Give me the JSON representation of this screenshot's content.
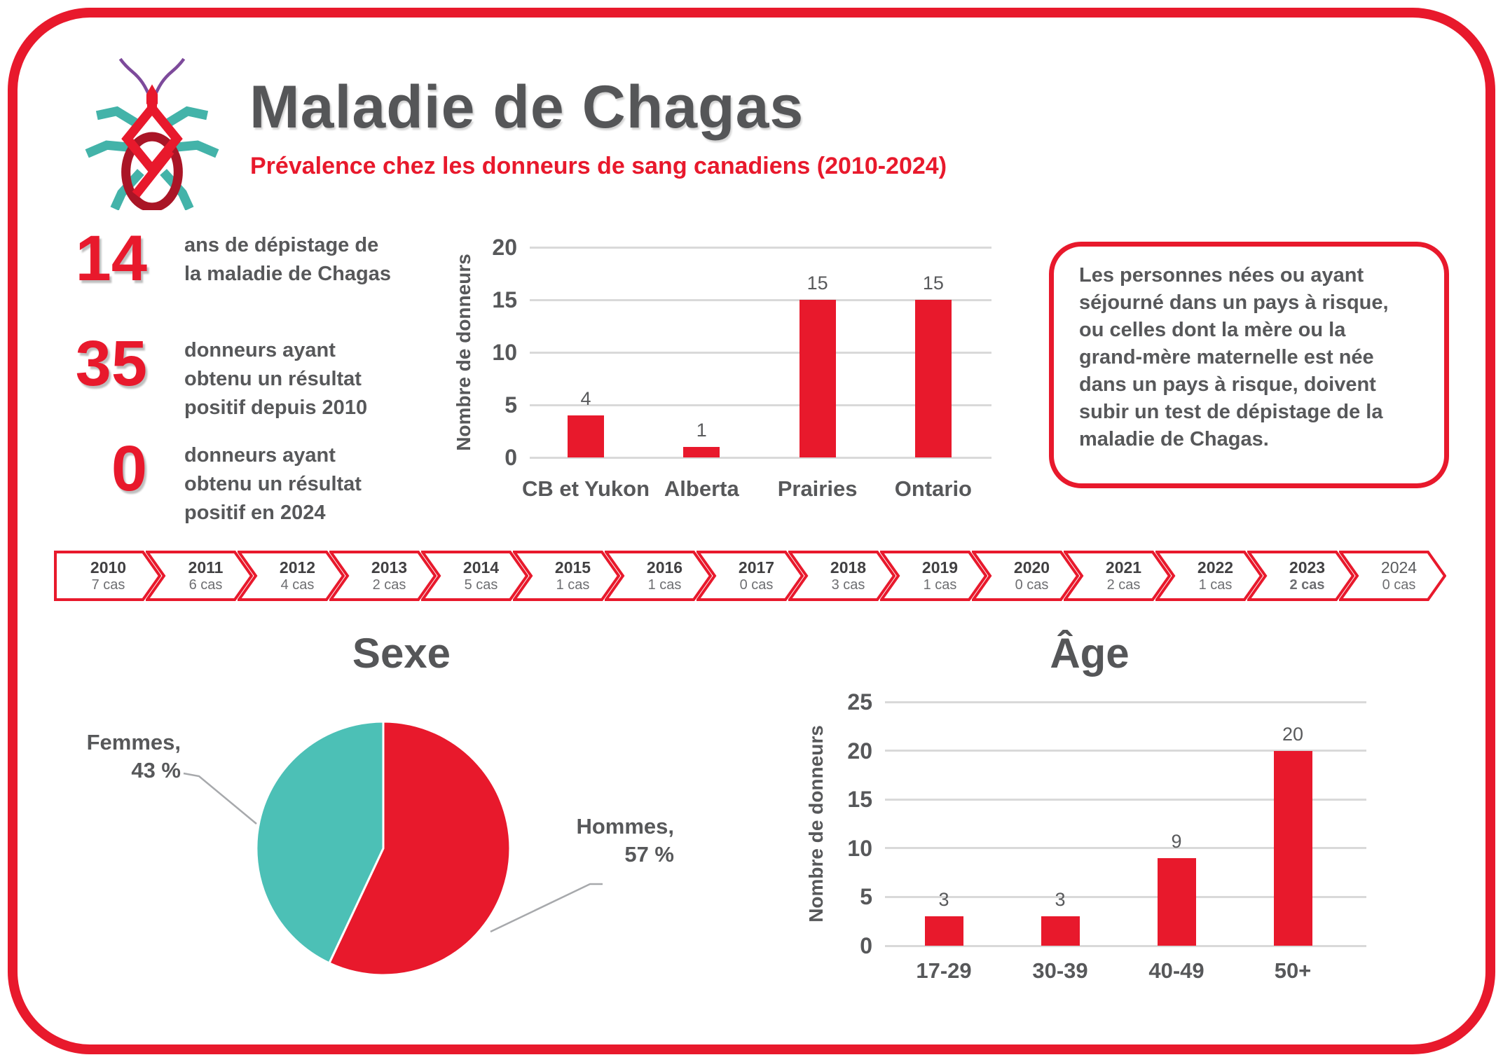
{
  "colors": {
    "red": "#e8192c",
    "teal": "#4cc0b6",
    "dark_red": "#aa1526",
    "gray_text": "#57585a",
    "gridline": "#d9d9d9"
  },
  "header": {
    "title": "Maladie de Chagas",
    "subtitle": "Prévalence chez les donneurs de sang canadiens (2010-2024)",
    "bug_icon": "kissing-bug-icon"
  },
  "stats": [
    {
      "value": "14",
      "label": "ans de dépistage de la maladie de Chagas"
    },
    {
      "value": "35",
      "label": "donneurs ayant obtenu un résultat positif depuis 2010"
    },
    {
      "value": "0",
      "label": "donneurs ayant obtenu un résultat positif en 2024"
    }
  ],
  "info_box": {
    "text": "Les personnes nées ou ayant séjourné dans un pays à risque, ou celles dont la mère ou la grand-mère maternelle est née dans un pays à risque, doivent subir un test de dépistage de la maladie de Chagas."
  },
  "timeline": {
    "items": [
      {
        "year": "2010",
        "cas": "7 cas"
      },
      {
        "year": "2011",
        "cas": "6 cas"
      },
      {
        "year": "2012",
        "cas": "4 cas"
      },
      {
        "year": "2013",
        "cas": "2 cas"
      },
      {
        "year": "2014",
        "cas": "5 cas"
      },
      {
        "year": "2015",
        "cas": "1 cas"
      },
      {
        "year": "2016",
        "cas": "1 cas"
      },
      {
        "year": "2017",
        "cas": "0 cas"
      },
      {
        "year": "2018",
        "cas": "3 cas"
      },
      {
        "year": "2019",
        "cas": "1 cas"
      },
      {
        "year": "2020",
        "cas": "0 cas"
      },
      {
        "year": "2021",
        "cas": "2 cas"
      },
      {
        "year": "2022",
        "cas": "1 cas"
      },
      {
        "year": "2023",
        "cas": "2 cas",
        "cas_bold": true
      },
      {
        "year": "2024",
        "cas": "0 cas",
        "year_light": true
      }
    ]
  },
  "sections": {
    "sexe_title": "Sexe",
    "age_title": "Âge"
  },
  "pie_labels": {
    "femmes_line1": "Femmes,",
    "femmes_line2": "43 %",
    "hommes_line1": "Hommes,",
    "hommes_line2": "57 %"
  },
  "chart_data": [
    {
      "id": "regions",
      "type": "bar",
      "title": "",
      "ylabel": "Nombre de donneurs",
      "categories": [
        "CB et Yukon",
        "Alberta",
        "Prairies",
        "Ontario"
      ],
      "values": [
        4,
        1,
        15,
        15
      ],
      "ylim": [
        0,
        20
      ],
      "yticks": [
        0,
        5,
        10,
        15,
        20
      ],
      "grid": true,
      "legend": "none",
      "bar_color": "#e8192c"
    },
    {
      "id": "sexe",
      "type": "pie",
      "title": "Sexe",
      "labels": [
        "Hommes",
        "Femmes"
      ],
      "values": [
        57,
        43
      ],
      "unit": "%",
      "colors": [
        "#e8192c",
        "#4cc0b6"
      ],
      "start_angle": "top",
      "direction": "clockwise",
      "legend": "outside-labels"
    },
    {
      "id": "age",
      "type": "bar",
      "title": "Âge",
      "ylabel": "Nombre de donneurs",
      "categories": [
        "17-29",
        "30-39",
        "40-49",
        "50+"
      ],
      "values": [
        3,
        3,
        9,
        20
      ],
      "ylim": [
        0,
        25
      ],
      "yticks": [
        0,
        5,
        10,
        15,
        20,
        25
      ],
      "grid": true,
      "legend": "none",
      "bar_color": "#e8192c"
    },
    {
      "id": "timeline-cases",
      "type": "table",
      "title": "Cas par année",
      "x": [
        "2010",
        "2011",
        "2012",
        "2013",
        "2014",
        "2015",
        "2016",
        "2017",
        "2018",
        "2019",
        "2020",
        "2021",
        "2022",
        "2023",
        "2024"
      ],
      "values": [
        7,
        6,
        4,
        2,
        5,
        1,
        1,
        0,
        3,
        1,
        0,
        2,
        1,
        2,
        0
      ]
    }
  ]
}
